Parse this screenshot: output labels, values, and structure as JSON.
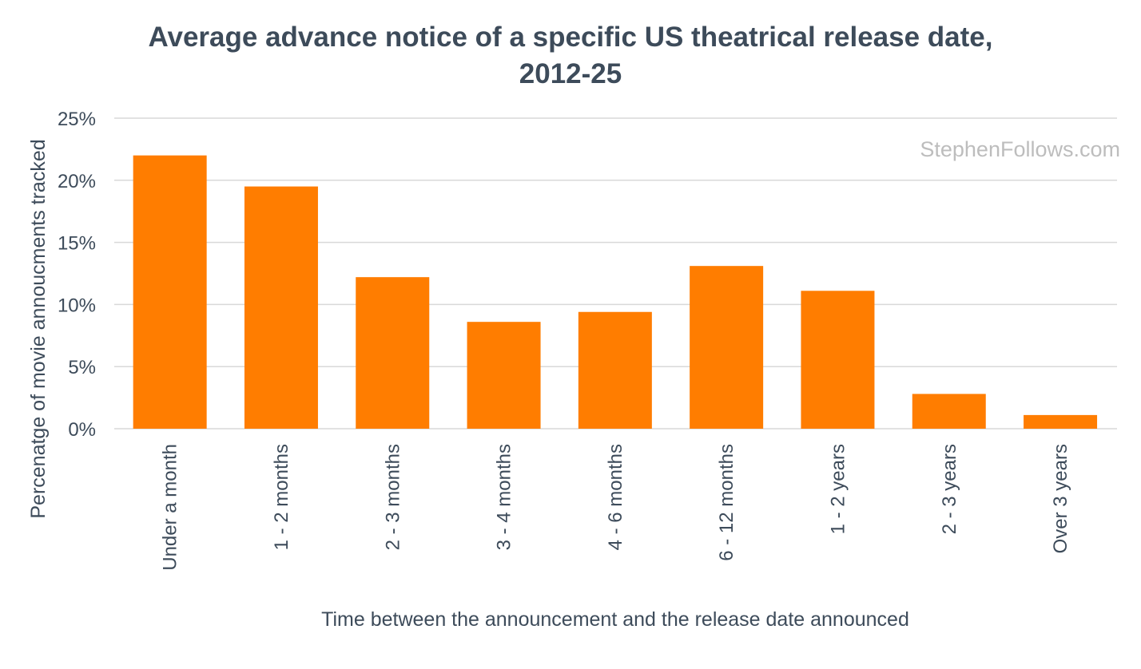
{
  "chart_data": {
    "type": "bar",
    "title_lines": [
      "Average advance notice of a specific US theatrical release date,",
      "2012-25"
    ],
    "xlabel": "Time between the announcement and the release date announced",
    "ylabel": "Percenatge of movie annoucments tracked",
    "categories": [
      "Under a month",
      "1 - 2 months",
      "2 - 3 months",
      "3 - 4 months",
      "4 - 6 months",
      "6 - 12 months",
      "1 - 2 years",
      "2 - 3 years",
      "Over 3 years"
    ],
    "values": [
      22.0,
      19.5,
      12.2,
      8.6,
      9.4,
      13.1,
      11.1,
      2.8,
      1.1
    ],
    "ylim": [
      0,
      25
    ],
    "yticks": [
      0,
      5,
      10,
      15,
      20,
      25
    ],
    "ytick_labels": [
      "0%",
      "5%",
      "10%",
      "15%",
      "20%",
      "25%"
    ],
    "grid": true,
    "legend": "none",
    "bar_color": "#ff7d00",
    "grid_color": "#d9d9d9",
    "text_color": "#3d4b5a",
    "watermark": "StephenFollows.com"
  }
}
